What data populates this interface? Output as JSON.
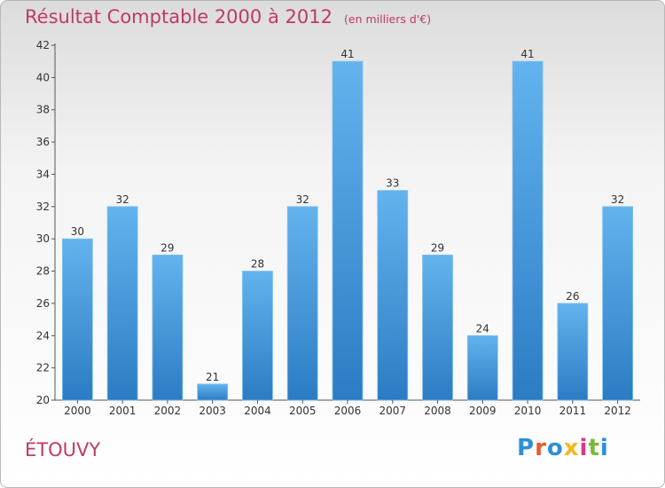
{
  "header": {
    "title": "Résultat Comptable 2000 à 2012",
    "unit": "(en milliers d'€)"
  },
  "footer": {
    "city": "ÉTOUVY",
    "logo": "Proxiti"
  },
  "colors": {
    "bar_light": "#63b3ee",
    "bar_dark": "#2c7cc4",
    "title": "#bf3a66"
  },
  "chart_data": {
    "type": "bar",
    "title": "Résultat Comptable 2000 à 2012",
    "subtitle": "(en milliers d'€)",
    "xlabel": "",
    "ylabel": "",
    "ylim": [
      20,
      42
    ],
    "yticks": [
      20,
      22,
      24,
      26,
      28,
      30,
      32,
      34,
      36,
      38,
      40,
      42
    ],
    "categories": [
      "2000",
      "2001",
      "2002",
      "2003",
      "2004",
      "2005",
      "2006",
      "2007",
      "2008",
      "2009",
      "2010",
      "2011",
      "2012"
    ],
    "values": [
      30,
      32,
      29,
      21,
      28,
      32,
      41,
      33,
      29,
      24,
      41,
      26,
      32
    ],
    "grid": false
  }
}
